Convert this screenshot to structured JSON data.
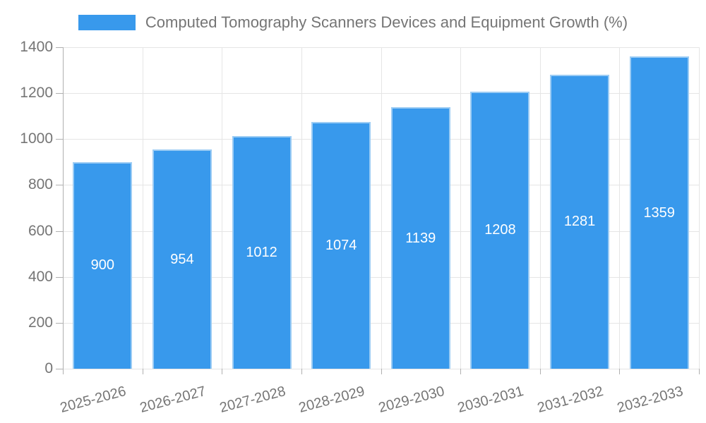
{
  "chart_data": {
    "type": "bar",
    "legend_label": "Computed Tomography Scanners Devices and Equipment Growth (%)",
    "legend_position": "top",
    "categories": [
      "2025-2026",
      "2026-2027",
      "2027-2028",
      "2028-2029",
      "2029-2030",
      "2030-2031",
      "2031-2032",
      "2032-2033"
    ],
    "values": [
      900,
      954,
      1012,
      1074,
      1139,
      1208,
      1281,
      1359
    ],
    "ylim": [
      0,
      1400
    ],
    "yticks": [
      0,
      200,
      400,
      600,
      800,
      1000,
      1200,
      1400
    ],
    "grid": true,
    "x_label_rotation_deg": -15,
    "colors": {
      "bar": "#3899EC",
      "bar_border": "#9CCCF4",
      "grid": "#E5E5E5",
      "axis": "#B0B0B0",
      "text": "#757575",
      "value_label": "#FFFFFF",
      "background": "#FFFFFF"
    }
  }
}
